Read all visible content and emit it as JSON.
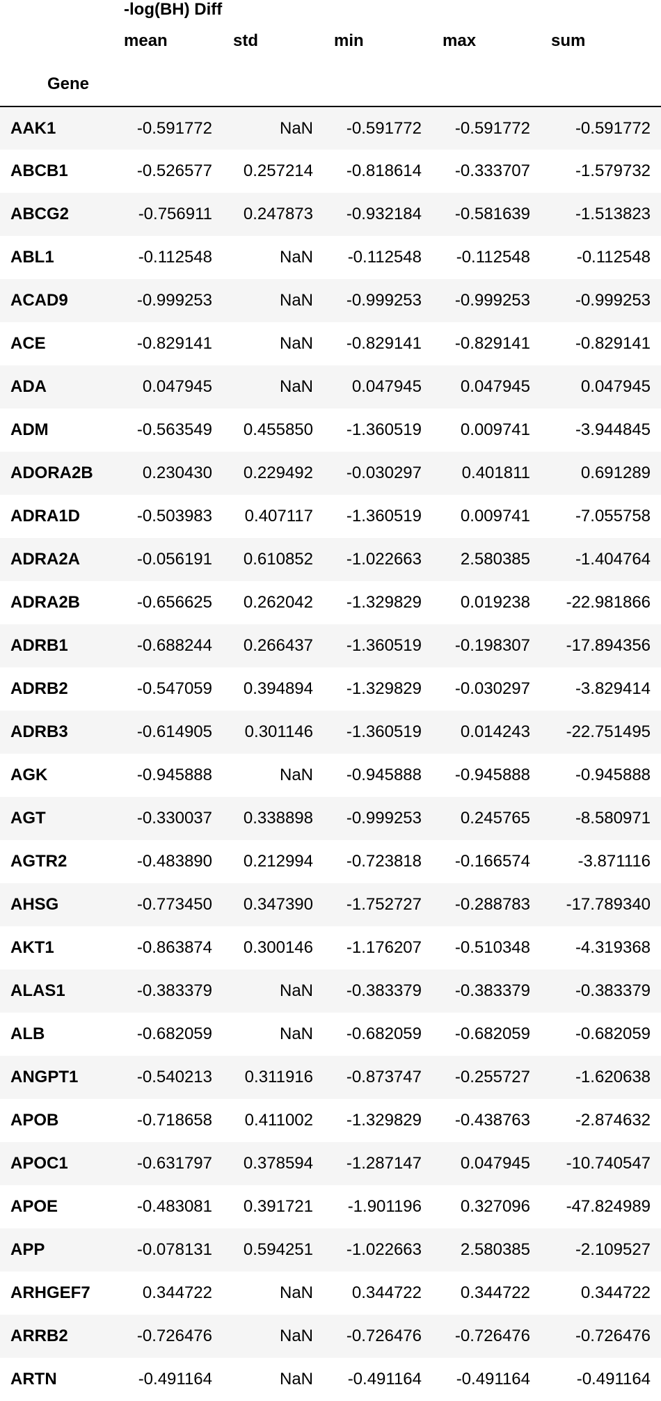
{
  "table": {
    "group_header": "-log(BH) Diff",
    "columns": [
      "mean",
      "std",
      "min",
      "max",
      "sum"
    ],
    "index_name": "Gene",
    "rows": [
      {
        "gene": "AAK1",
        "mean": "-0.591772",
        "std": "NaN",
        "min": "-0.591772",
        "max": "-0.591772",
        "sum": "-0.591772"
      },
      {
        "gene": "ABCB1",
        "mean": "-0.526577",
        "std": "0.257214",
        "min": "-0.818614",
        "max": "-0.333707",
        "sum": "-1.579732"
      },
      {
        "gene": "ABCG2",
        "mean": "-0.756911",
        "std": "0.247873",
        "min": "-0.932184",
        "max": "-0.581639",
        "sum": "-1.513823"
      },
      {
        "gene": "ABL1",
        "mean": "-0.112548",
        "std": "NaN",
        "min": "-0.112548",
        "max": "-0.112548",
        "sum": "-0.112548"
      },
      {
        "gene": "ACAD9",
        "mean": "-0.999253",
        "std": "NaN",
        "min": "-0.999253",
        "max": "-0.999253",
        "sum": "-0.999253"
      },
      {
        "gene": "ACE",
        "mean": "-0.829141",
        "std": "NaN",
        "min": "-0.829141",
        "max": "-0.829141",
        "sum": "-0.829141"
      },
      {
        "gene": "ADA",
        "mean": "0.047945",
        "std": "NaN",
        "min": "0.047945",
        "max": "0.047945",
        "sum": "0.047945"
      },
      {
        "gene": "ADM",
        "mean": "-0.563549",
        "std": "0.455850",
        "min": "-1.360519",
        "max": "0.009741",
        "sum": "-3.944845"
      },
      {
        "gene": "ADORA2B",
        "mean": "0.230430",
        "std": "0.229492",
        "min": "-0.030297",
        "max": "0.401811",
        "sum": "0.691289"
      },
      {
        "gene": "ADRA1D",
        "mean": "-0.503983",
        "std": "0.407117",
        "min": "-1.360519",
        "max": "0.009741",
        "sum": "-7.055758"
      },
      {
        "gene": "ADRA2A",
        "mean": "-0.056191",
        "std": "0.610852",
        "min": "-1.022663",
        "max": "2.580385",
        "sum": "-1.404764"
      },
      {
        "gene": "ADRA2B",
        "mean": "-0.656625",
        "std": "0.262042",
        "min": "-1.329829",
        "max": "0.019238",
        "sum": "-22.981866"
      },
      {
        "gene": "ADRB1",
        "mean": "-0.688244",
        "std": "0.266437",
        "min": "-1.360519",
        "max": "-0.198307",
        "sum": "-17.894356"
      },
      {
        "gene": "ADRB2",
        "mean": "-0.547059",
        "std": "0.394894",
        "min": "-1.329829",
        "max": "-0.030297",
        "sum": "-3.829414"
      },
      {
        "gene": "ADRB3",
        "mean": "-0.614905",
        "std": "0.301146",
        "min": "-1.360519",
        "max": "0.014243",
        "sum": "-22.751495"
      },
      {
        "gene": "AGK",
        "mean": "-0.945888",
        "std": "NaN",
        "min": "-0.945888",
        "max": "-0.945888",
        "sum": "-0.945888"
      },
      {
        "gene": "AGT",
        "mean": "-0.330037",
        "std": "0.338898",
        "min": "-0.999253",
        "max": "0.245765",
        "sum": "-8.580971"
      },
      {
        "gene": "AGTR2",
        "mean": "-0.483890",
        "std": "0.212994",
        "min": "-0.723818",
        "max": "-0.166574",
        "sum": "-3.871116"
      },
      {
        "gene": "AHSG",
        "mean": "-0.773450",
        "std": "0.347390",
        "min": "-1.752727",
        "max": "-0.288783",
        "sum": "-17.789340"
      },
      {
        "gene": "AKT1",
        "mean": "-0.863874",
        "std": "0.300146",
        "min": "-1.176207",
        "max": "-0.510348",
        "sum": "-4.319368"
      },
      {
        "gene": "ALAS1",
        "mean": "-0.383379",
        "std": "NaN",
        "min": "-0.383379",
        "max": "-0.383379",
        "sum": "-0.383379"
      },
      {
        "gene": "ALB",
        "mean": "-0.682059",
        "std": "NaN",
        "min": "-0.682059",
        "max": "-0.682059",
        "sum": "-0.682059"
      },
      {
        "gene": "ANGPT1",
        "mean": "-0.540213",
        "std": "0.311916",
        "min": "-0.873747",
        "max": "-0.255727",
        "sum": "-1.620638"
      },
      {
        "gene": "APOB",
        "mean": "-0.718658",
        "std": "0.411002",
        "min": "-1.329829",
        "max": "-0.438763",
        "sum": "-2.874632"
      },
      {
        "gene": "APOC1",
        "mean": "-0.631797",
        "std": "0.378594",
        "min": "-1.287147",
        "max": "0.047945",
        "sum": "-10.740547"
      },
      {
        "gene": "APOE",
        "mean": "-0.483081",
        "std": "0.391721",
        "min": "-1.901196",
        "max": "0.327096",
        "sum": "-47.824989"
      },
      {
        "gene": "APP",
        "mean": "-0.078131",
        "std": "0.594251",
        "min": "-1.022663",
        "max": "2.580385",
        "sum": "-2.109527"
      },
      {
        "gene": "ARHGEF7",
        "mean": "0.344722",
        "std": "NaN",
        "min": "0.344722",
        "max": "0.344722",
        "sum": "0.344722"
      },
      {
        "gene": "ARRB2",
        "mean": "-0.726476",
        "std": "NaN",
        "min": "-0.726476",
        "max": "-0.726476",
        "sum": "-0.726476"
      },
      {
        "gene": "ARTN",
        "mean": "-0.491164",
        "std": "NaN",
        "min": "-0.491164",
        "max": "-0.491164",
        "sum": "-0.491164"
      }
    ]
  }
}
